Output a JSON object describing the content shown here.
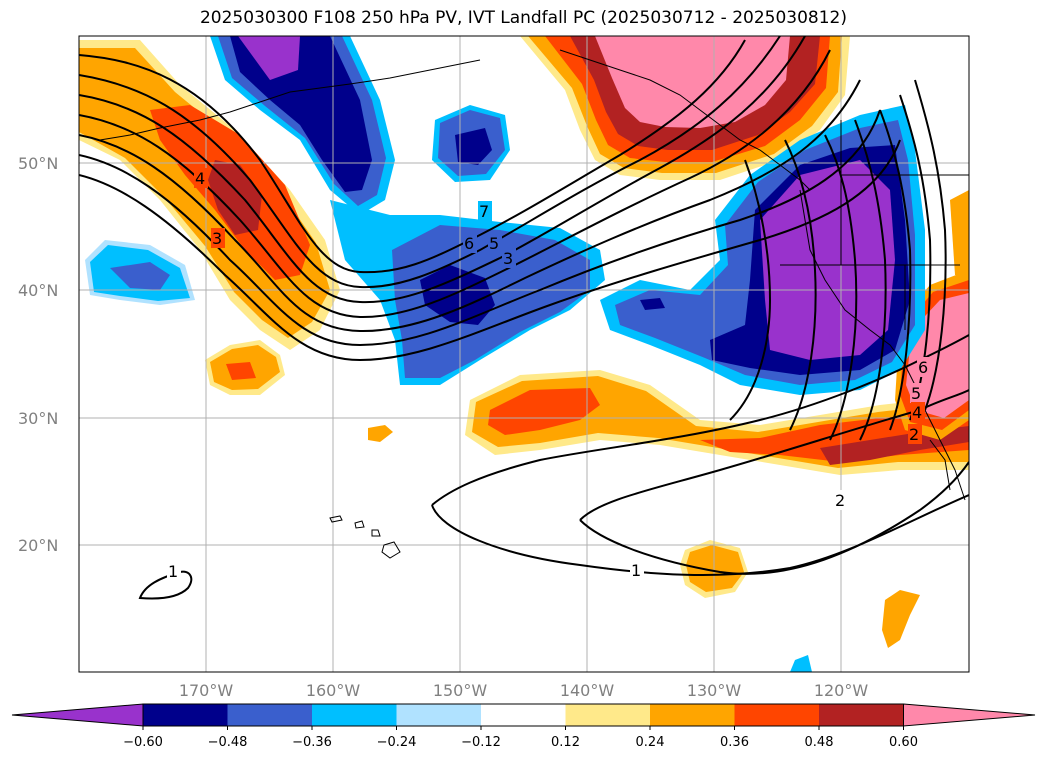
{
  "title": "2025030300 F108 250 hPa PV, IVT Landfall PC (2025030712 - 2025030812)",
  "lat_labels": [
    "50°N",
    "40°N",
    "30°N",
    "20°N"
  ],
  "lon_labels": [
    "170°W",
    "160°W",
    "150°W",
    "140°W",
    "130°W",
    "120°W"
  ],
  "contour_labels": [
    "1",
    "1",
    "2",
    "2",
    "3",
    "3",
    "4",
    "4",
    "5",
    "5",
    "6",
    "6",
    "7"
  ],
  "colorbar": {
    "ticks": [
      "−0.60",
      "−0.48",
      "−0.36",
      "−0.24",
      "−0.12",
      "0.12",
      "0.24",
      "0.36",
      "0.48",
      "0.60"
    ],
    "colors": [
      "#9932cc",
      "#00008b",
      "#3a5fcd",
      "#00bfff",
      "#b0e2ff",
      "#ffffff",
      "#ffe98a",
      "#ffa500",
      "#ff4500",
      "#b22222",
      "#ff88aa"
    ]
  },
  "colors": {
    "purple": "#9932cc",
    "navy": "#00008b",
    "blue": "#3a5fcd",
    "cyan": "#00bfff",
    "lightblue": "#b0e2ff",
    "yellow": "#ffe98a",
    "orange": "#ffa500",
    "redorange": "#ff4500",
    "firebrick": "#b22222",
    "pink": "#ff88aa"
  }
}
